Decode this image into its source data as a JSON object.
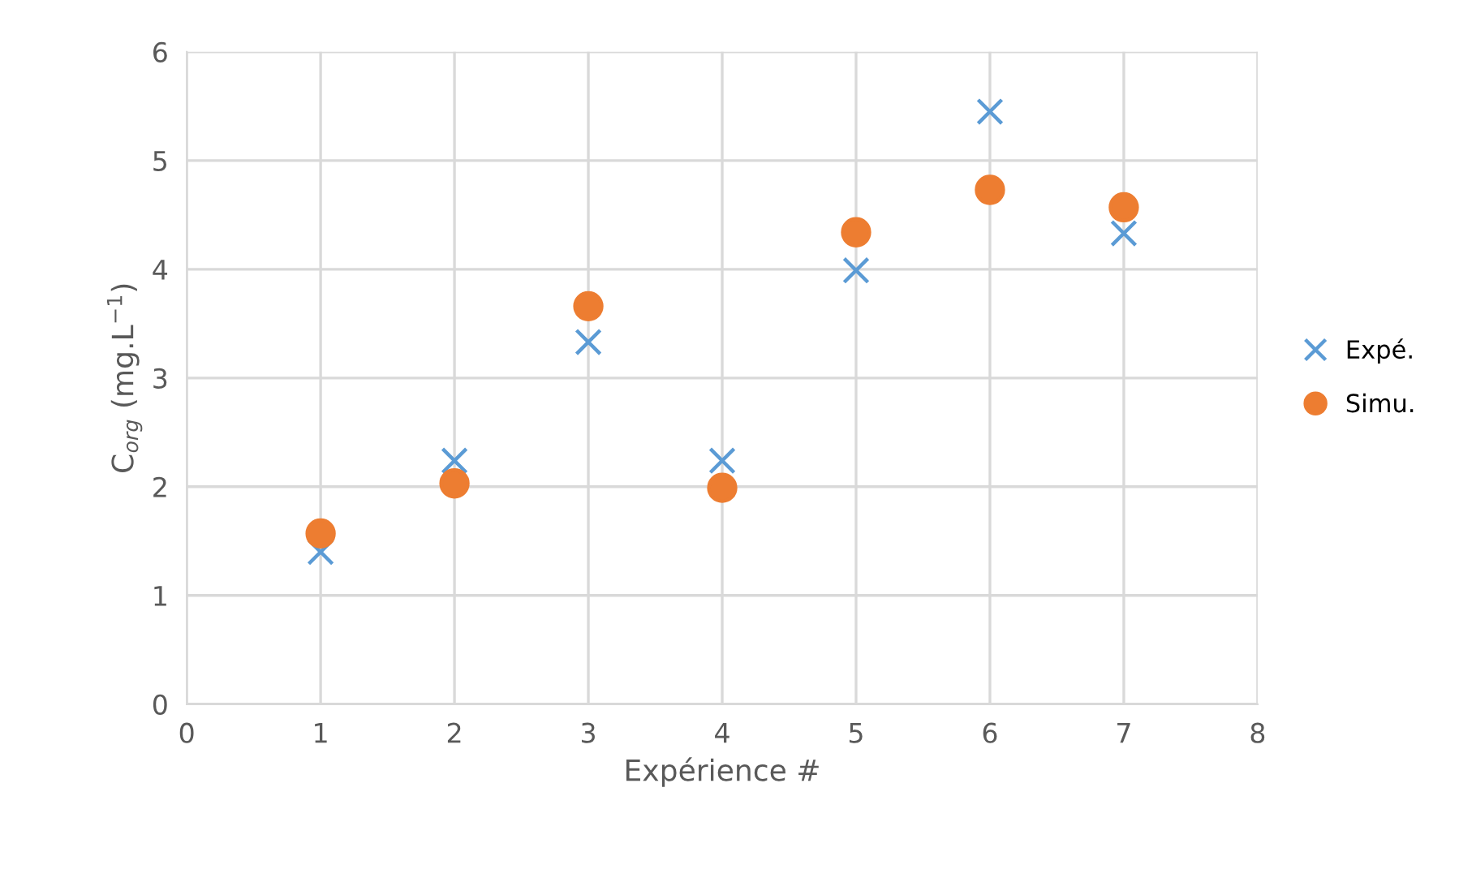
{
  "chart_data": {
    "type": "scatter",
    "xlabel": "Expérience #",
    "ylabel": "C$_{org}$ (mg.L$^{−1}$)",
    "x": [
      1,
      2,
      3,
      4,
      5,
      6,
      7
    ],
    "series": [
      {
        "name": "Expé.",
        "color": "#5b9bd5",
        "marker": "cross",
        "values": [
          1.4,
          2.24,
          3.33,
          2.24,
          3.99,
          5.45,
          4.33
        ]
      },
      {
        "name": "Simu.",
        "color": "#ed7d31",
        "marker": "circle",
        "values": [
          1.57,
          2.03,
          3.66,
          1.99,
          4.34,
          4.73,
          4.57
        ]
      }
    ],
    "xlim": [
      0,
      8
    ],
    "xticks": [
      0,
      1,
      2,
      3,
      4,
      5,
      6,
      7,
      8
    ],
    "ylim": [
      0,
      6
    ],
    "yticks": [
      0,
      1,
      2,
      3,
      4,
      5,
      6
    ],
    "grid": true,
    "legend": "right"
  }
}
